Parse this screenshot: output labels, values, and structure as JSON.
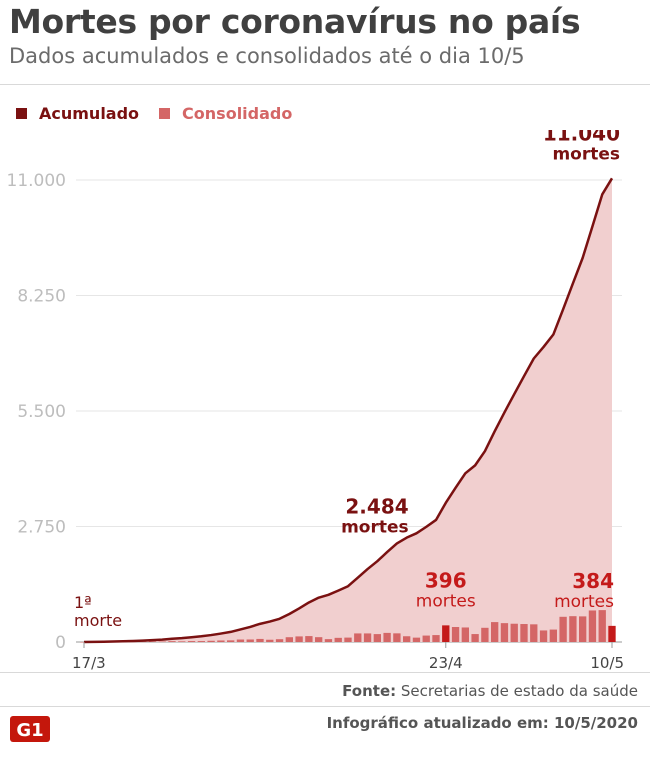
{
  "header": {
    "title": "Mortes por coronavírus no país",
    "subtitle": "Dados acumulados e consolidados até o dia 10/5"
  },
  "legend": {
    "items": [
      {
        "label": "Acumulado",
        "color": "#7a1111"
      },
      {
        "label": "Consolidado",
        "color": "#d46666"
      }
    ]
  },
  "footer": {
    "source_label": "Fonte:",
    "source_text": "Secretarias de estado da saúde",
    "updated": "Infográfico atualizado em: 10/5/2020",
    "logo_text": "G1"
  },
  "colors": {
    "cumulative_line": "#7a1111",
    "cumulative_area": "#f1cfcf",
    "bars": "#d46666",
    "bars_highlight": "#c41a1a",
    "annotation_dark": "#7a1111",
    "annotation_red": "#c41a1a",
    "grid": "#e6e6e6",
    "tick_text": "#bdbdbd"
  },
  "chart_data": {
    "type": "area",
    "x_start": "17/3",
    "x_end": "10/5",
    "xticks": [
      {
        "index": 0,
        "label": "17/3"
      },
      {
        "index": 37,
        "label": "23/4"
      },
      {
        "index": 54,
        "label": "10/5"
      }
    ],
    "ylim": [
      0,
      11000
    ],
    "yticks": [
      {
        "value": 0,
        "label": "0"
      },
      {
        "value": 2750,
        "label": "2.750"
      },
      {
        "value": 5500,
        "label": "5.500"
      },
      {
        "value": 8250,
        "label": "8.250"
      },
      {
        "value": 11000,
        "label": "11.000"
      }
    ],
    "grid": true,
    "legend_position": "top-left",
    "series": [
      {
        "name": "Acumulado",
        "type": "area",
        "values": [
          1,
          3,
          7,
          11,
          18,
          25,
          34,
          46,
          57,
          77,
          92,
          114,
          136,
          165,
          201,
          240,
          299,
          359,
          432,
          486,
          553,
          667,
          800,
          941,
          1056,
          1124,
          1223,
          1328,
          1532,
          1736,
          1924,
          2141,
          2347,
          2484,
          2588,
          2741,
          2906,
          3313,
          3670,
          4016,
          4205,
          4543,
          5017,
          5466,
          5901,
          6329,
          6750,
          7025,
          7321,
          7921,
          8536,
          9146,
          9897,
          10656,
          11040
        ]
      },
      {
        "name": "Consolidado",
        "type": "bar",
        "values": [
          1,
          2,
          4,
          4,
          7,
          7,
          9,
          12,
          11,
          20,
          15,
          22,
          22,
          29,
          36,
          39,
          59,
          60,
          73,
          54,
          67,
          114,
          133,
          141,
          115,
          68,
          99,
          105,
          204,
          204,
          188,
          217,
          206,
          137,
          104,
          153,
          165,
          396,
          357,
          346,
          189,
          338,
          474,
          449,
          435,
          428,
          421,
          275,
          296,
          600,
          615,
          610,
          751,
          759,
          384
        ],
        "highlight_indices": [
          37,
          54
        ]
      }
    ],
    "annotations": [
      {
        "index": 0,
        "line1": "1ª",
        "line2": "morte",
        "style": "dark"
      },
      {
        "index": 33,
        "line1": "2.484",
        "line2": "mortes",
        "style": "dark"
      },
      {
        "index": 37,
        "line1": "396",
        "line2": "mortes",
        "style": "red"
      },
      {
        "index": 54,
        "line1": "384",
        "line2": "mortes",
        "style": "red"
      },
      {
        "index": 54,
        "line1": "11.040",
        "line2": "mortes",
        "style": "dark-top"
      }
    ]
  }
}
